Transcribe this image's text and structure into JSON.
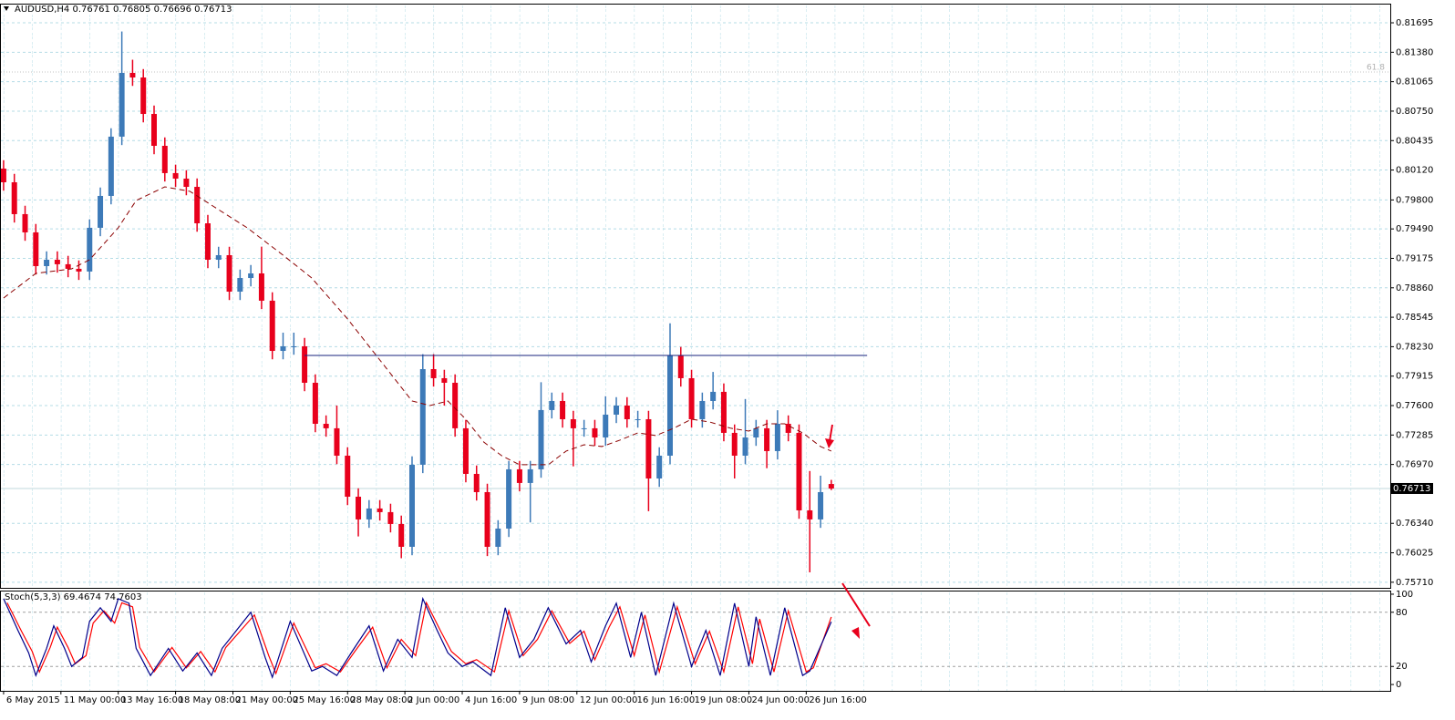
{
  "chart_data": [
    {
      "type": "candlestick",
      "title": "AUDUSD,H4",
      "bull_color": "#3d7ab8",
      "bear_color": "#e8001c",
      "xlim": [
        -1,
        387
      ],
      "ylim": [
        0.7565,
        0.819
      ],
      "grid": true,
      "xticks": [
        {
          "value": 0,
          "label": "6 May 2015"
        },
        {
          "value": 16,
          "label": "11 May 00:00"
        },
        {
          "value": 32,
          "label": "13 May 16:00"
        },
        {
          "value": 48,
          "label": "18 May 08:00"
        },
        {
          "value": 64,
          "label": "21 May 00:00"
        },
        {
          "value": 80,
          "label": "25 May 16:00"
        },
        {
          "value": 96,
          "label": "28 May 08:00"
        },
        {
          "value": 112,
          "label": "2 Jun 00:00"
        },
        {
          "value": 128,
          "label": "4 Jun 16:00"
        },
        {
          "value": 144,
          "label": "9 Jun 08:00"
        },
        {
          "value": 160,
          "label": "12 Jun 00:00"
        },
        {
          "value": 176,
          "label": "16 Jun 16:00"
        },
        {
          "value": 192,
          "label": "19 Jun 08:00"
        },
        {
          "value": 208,
          "label": "24 Jun 00:00"
        },
        {
          "value": 224,
          "label": "26 Jun 16:00"
        }
      ],
      "yticks": [
        0.81695,
        {
          "value": 0.8138,
          "label": "0.81380"
        },
        0.81065,
        {
          "value": 0.8075,
          "label": "0.80750"
        },
        0.80435,
        {
          "value": 0.8012,
          "label": "0.80120"
        },
        {
          "value": 0.798,
          "label": "0.79800"
        },
        {
          "value": 0.7949,
          "label": "0.79490"
        },
        0.79175,
        {
          "value": 0.7886,
          "label": "0.78860"
        },
        0.78545,
        {
          "value": 0.7823,
          "label": "0.78230"
        },
        0.77915,
        {
          "value": 0.776,
          "label": "0.77600"
        },
        0.77285,
        {
          "value": 0.7697,
          "label": "0.76970"
        },
        {
          "value": 0.7634,
          "label": "0.76340"
        },
        0.76025,
        {
          "value": 0.7571,
          "label": "0.75710"
        }
      ],
      "x": [
        0,
        3,
        6,
        9,
        12,
        15,
        18,
        21,
        24,
        27,
        30,
        33,
        36,
        39,
        42,
        45,
        48,
        51,
        54,
        57,
        60,
        63,
        66,
        69,
        72,
        75,
        78,
        81,
        84,
        87,
        90,
        93,
        96,
        99,
        102,
        105,
        108,
        111,
        114,
        117,
        120,
        123,
        126,
        129,
        132,
        135,
        138,
        141,
        144,
        147,
        150,
        153,
        156,
        159,
        162,
        165,
        168,
        171,
        174,
        177,
        180,
        183,
        186,
        189,
        192,
        195,
        198,
        201,
        204,
        207,
        210,
        213,
        216,
        219,
        222,
        225,
        228,
        231
      ],
      "open": [
        0.80135,
        0.79989,
        0.79648,
        0.79453,
        0.79092,
        0.7916,
        0.79112,
        0.79063,
        0.79034,
        0.79502,
        0.79843,
        0.80477,
        0.81159,
        0.8111,
        0.8072,
        0.80379,
        0.80087,
        0.80028,
        0.7994,
        0.7955,
        0.7916,
        0.79209,
        0.78819,
        0.78965,
        0.79014,
        0.78722,
        0.78185,
        0.78234,
        0.78234,
        0.77844,
        0.77405,
        0.77357,
        0.77064,
        0.76625,
        0.76382,
        0.76499,
        0.7646,
        0.76333,
        0.76089,
        0.76967,
        0.7799,
        0.77893,
        0.77844,
        0.77357,
        0.76869,
        0.76674,
        0.76089,
        0.76284,
        0.76918,
        0.76772,
        0.76918,
        0.77552,
        0.77649,
        0.77454,
        0.77357,
        0.77357,
        0.77259,
        0.77503,
        0.776,
        0.77454,
        0.77454,
        0.7682,
        0.77064,
        0.78137,
        0.77893,
        0.77454,
        0.77649,
        0.77747,
        0.77308,
        0.77064,
        0.77259,
        0.77357,
        0.77113,
        0.77405,
        0.77308,
        0.76479,
        0.76382,
        0.76761
      ],
      "high": [
        0.80225,
        0.80079,
        0.79738,
        0.79543,
        0.7925,
        0.7925,
        0.79202,
        0.79153,
        0.79592,
        0.79933,
        0.80567,
        0.81602,
        0.813,
        0.812,
        0.8081,
        0.80469,
        0.80177,
        0.80118,
        0.8003,
        0.7964,
        0.79299,
        0.79299,
        0.79055,
        0.79104,
        0.793,
        0.78812,
        0.7838,
        0.7838,
        0.78324,
        0.77934,
        0.77495,
        0.776,
        0.77154,
        0.76715,
        0.76589,
        0.76589,
        0.7655,
        0.76423,
        0.77057,
        0.7815,
        0.7815,
        0.77983,
        0.77934,
        0.77447,
        0.76959,
        0.76764,
        0.76374,
        0.77008,
        0.77008,
        0.77008,
        0.7785,
        0.77739,
        0.77739,
        0.77544,
        0.77447,
        0.77447,
        0.777,
        0.7769,
        0.7769,
        0.77544,
        0.77544,
        0.77154,
        0.7848,
        0.78227,
        0.77983,
        0.77739,
        0.7796,
        0.77837,
        0.77398,
        0.7767,
        0.77447,
        0.77447,
        0.7755,
        0.77495,
        0.77398,
        0.769,
        0.7685,
        0.76805
      ],
      "low": [
        0.79899,
        0.79558,
        0.79363,
        0.79002,
        0.79002,
        0.79022,
        0.78973,
        0.78944,
        0.78944,
        0.79412,
        0.79753,
        0.80387,
        0.8102,
        0.8063,
        0.80289,
        0.79997,
        0.79938,
        0.7985,
        0.7946,
        0.7907,
        0.7907,
        0.78729,
        0.78729,
        0.78875,
        0.78632,
        0.78095,
        0.78095,
        0.78144,
        0.77754,
        0.77315,
        0.77267,
        0.76974,
        0.76535,
        0.762,
        0.76292,
        0.7637,
        0.76243,
        0.75967,
        0.75999,
        0.76877,
        0.77803,
        0.776,
        0.77267,
        0.76779,
        0.76584,
        0.7599,
        0.75999,
        0.76194,
        0.76682,
        0.7635,
        0.76828,
        0.77462,
        0.77364,
        0.7695,
        0.77267,
        0.77169,
        0.77169,
        0.77413,
        0.77364,
        0.77364,
        0.7647,
        0.7673,
        0.76974,
        0.77803,
        0.77364,
        0.77364,
        0.77559,
        0.77218,
        0.7682,
        0.76974,
        0.77169,
        0.7693,
        0.77023,
        0.77218,
        0.76389,
        0.75816,
        0.76292,
        0.76696
      ],
      "close": [
        0.79989,
        0.79648,
        0.79453,
        0.79092,
        0.7916,
        0.79112,
        0.79063,
        0.79034,
        0.79502,
        0.79843,
        0.80477,
        0.81159,
        0.8111,
        0.8072,
        0.80379,
        0.80087,
        0.80028,
        0.7994,
        0.7955,
        0.7916,
        0.79209,
        0.78819,
        0.78965,
        0.79014,
        0.78722,
        0.78185,
        0.78234,
        0.78234,
        0.77844,
        0.77405,
        0.77357,
        0.77064,
        0.76625,
        0.76382,
        0.76499,
        0.7646,
        0.76333,
        0.76089,
        0.76967,
        0.7799,
        0.77893,
        0.77844,
        0.77357,
        0.76869,
        0.76674,
        0.76089,
        0.76284,
        0.76918,
        0.76772,
        0.76918,
        0.77552,
        0.77649,
        0.77454,
        0.77357,
        0.77357,
        0.77259,
        0.77503,
        0.776,
        0.77454,
        0.77454,
        0.7682,
        0.77064,
        0.78137,
        0.77893,
        0.77454,
        0.77649,
        0.77747,
        0.77308,
        0.77064,
        0.77259,
        0.77357,
        0.77113,
        0.77405,
        0.77308,
        0.76479,
        0.76382,
        0.76674,
        0.76713
      ],
      "ma": {
        "color": "#8b0000",
        "x": [
          0,
          9,
          19,
          24,
          32,
          37,
          45,
          52,
          60,
          68,
          73,
          78,
          86,
          96,
          106,
          114,
          119,
          124,
          129,
          134,
          139,
          144,
          152,
          157,
          162,
          167,
          172,
          177,
          182,
          187,
          192,
          197,
          203,
          208,
          213,
          218,
          223,
          228,
          231
        ],
        "values": [
          0.78751,
          0.79014,
          0.79063,
          0.7916,
          0.79502,
          0.79794,
          0.7994,
          0.79892,
          0.79696,
          0.79502,
          0.79355,
          0.79209,
          0.78965,
          0.78527,
          0.78039,
          0.77649,
          0.776,
          0.77649,
          0.77454,
          0.7721,
          0.77064,
          0.76967,
          0.76967,
          0.77113,
          0.77181,
          0.77162,
          0.7723,
          0.77308,
          0.77279,
          0.77357,
          0.77454,
          0.77425,
          0.77357,
          0.77327,
          0.77405,
          0.77405,
          0.77308,
          0.77162,
          0.77113
        ]
      },
      "trendline": {
        "color": "#1a237e",
        "x": [
          84,
          241
        ],
        "y": [
          0.78136,
          0.78136
        ]
      },
      "fib_level": {
        "label": "61.8",
        "value": 0.81169
      }
    },
    {
      "type": "line",
      "title": "Stoch(5,3,3)",
      "ylim": [
        -7,
        104
      ],
      "yticks": [
        0,
        20,
        80,
        100
      ],
      "levels": [
        20,
        80
      ],
      "series": [
        {
          "color": "#00008b",
          "x": [
            0,
            4,
            7,
            9,
            12,
            14,
            17,
            19,
            22,
            24,
            27,
            30,
            32,
            35,
            37,
            41,
            46,
            50,
            54,
            58,
            61,
            65,
            69,
            73,
            75,
            80,
            86,
            89,
            93,
            97,
            102,
            106,
            110,
            114,
            117,
            121,
            124,
            128,
            131,
            136,
            140,
            144,
            148,
            152,
            157,
            161,
            164,
            168,
            171,
            175,
            178,
            182,
            187,
            192,
            196,
            200,
            204,
            208,
            210,
            214,
            218,
            223,
            225,
            231
          ],
          "values": [
            95,
            60,
            35,
            10,
            40,
            65,
            40,
            20,
            30,
            70,
            85,
            70,
            95,
            90,
            40,
            10,
            40,
            15,
            35,
            10,
            40,
            60,
            80,
            30,
            8,
            70,
            15,
            20,
            10,
            35,
            65,
            15,
            50,
            30,
            95,
            60,
            35,
            20,
            25,
            10,
            85,
            30,
            50,
            85,
            45,
            60,
            25,
            65,
            90,
            30,
            80,
            10,
            90,
            20,
            60,
            10,
            90,
            20,
            75,
            10,
            85,
            10,
            15,
            69.4674
          ]
        },
        {
          "color": "#ff0000",
          "x": [
            1,
            5,
            8,
            10,
            13,
            15,
            18,
            20,
            23,
            25,
            28,
            31,
            33,
            36,
            38,
            42,
            47,
            51,
            55,
            59,
            62,
            66,
            70,
            74,
            76,
            81,
            87,
            90,
            94,
            98,
            103,
            107,
            111,
            115,
            118,
            122,
            125,
            129,
            132,
            137,
            141,
            145,
            149,
            153,
            158,
            162,
            165,
            169,
            172,
            176,
            179,
            183,
            188,
            193,
            197,
            201,
            205,
            209,
            211,
            215,
            219,
            224,
            226,
            231
          ],
          "values": [
            90.5,
            59,
            36.5,
            14,
            41,
            63.5,
            41,
            23,
            32,
            68,
            81.5,
            68,
            90.5,
            86,
            41,
            14,
            41,
            18.5,
            36.5,
            14,
            41,
            59,
            77,
            32,
            12.2,
            68,
            18.5,
            23,
            14,
            36.5,
            63.5,
            18.5,
            50,
            32,
            90.5,
            59,
            36.5,
            23,
            27.5,
            14,
            81.5,
            32,
            50,
            81.5,
            45.5,
            59,
            27.5,
            63.5,
            86,
            32,
            77,
            14,
            86,
            23,
            59,
            14,
            86,
            23,
            72.5,
            14,
            81.5,
            14,
            18.5,
            74.7603
          ]
        }
      ]
    }
  ]
}
